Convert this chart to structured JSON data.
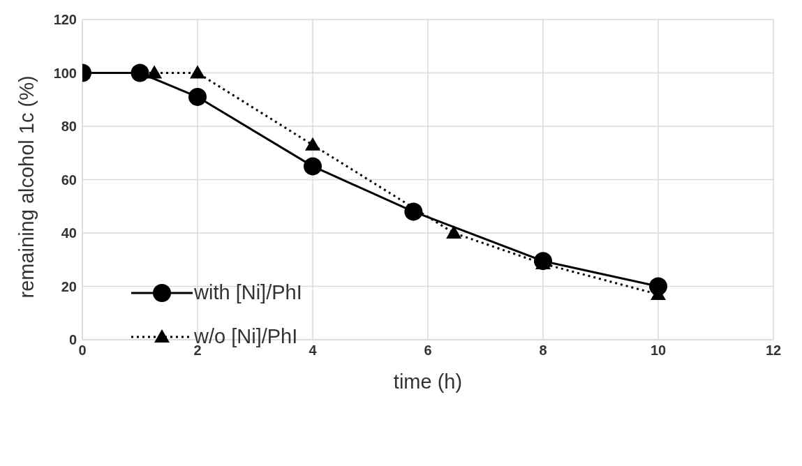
{
  "chart_data": {
    "type": "line",
    "xlabel": "time (h)",
    "ylabel": "remaining alcohol 1c (%)",
    "xlim": [
      0,
      12
    ],
    "xticks": [
      0,
      2,
      4,
      6,
      8,
      10,
      12
    ],
    "ylim": [
      0,
      120
    ],
    "yticks": [
      0,
      20,
      40,
      60,
      80,
      100,
      120
    ],
    "grid": true,
    "legend": "bottom left",
    "series": [
      {
        "name": "with [Ni]/PhI",
        "color": "#000000",
        "marker": "circle",
        "line_style": "solid",
        "x": [
          0,
          1,
          2,
          4,
          5.75,
          8,
          10
        ],
        "values": [
          100,
          100,
          91,
          65,
          48,
          29.5,
          20
        ]
      },
      {
        "name": "w/o [Ni]/PhI",
        "color": "#000000",
        "marker": "triangle",
        "line_style": "dotted",
        "x": [
          0,
          1.25,
          2,
          4,
          6.45,
          8,
          10
        ],
        "values": [
          100,
          100,
          100,
          73,
          40,
          28.5,
          17
        ]
      }
    ]
  }
}
